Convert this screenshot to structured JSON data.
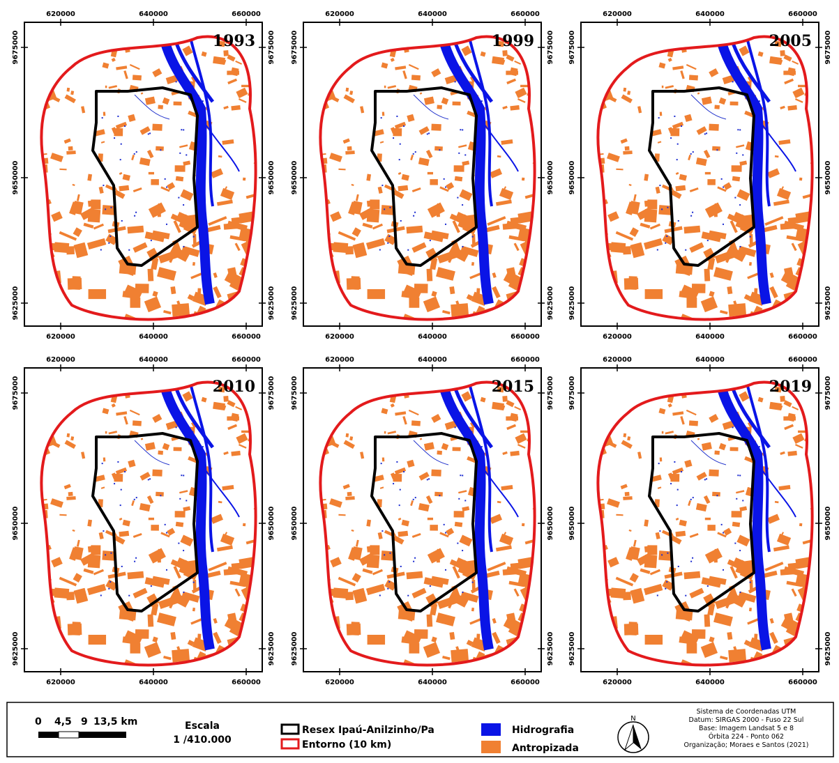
{
  "panels": [
    {
      "year": "1993"
    },
    {
      "year": "1999"
    },
    {
      "year": "2005"
    },
    {
      "year": "2010"
    },
    {
      "year": "2015"
    },
    {
      "year": "2019"
    }
  ],
  "axis": {
    "x_ticks": [
      "620000",
      "640000",
      "660000"
    ],
    "y_ticks": [
      "9675000",
      "9650000",
      "9625000"
    ]
  },
  "legend": {
    "scale_bar": [
      "0",
      "4,5",
      "9",
      "13,5 km"
    ],
    "scale_title": "Escala",
    "scale_ratio": "1 /410.000",
    "reserve": "Resex Ipaú-Anilzinho/Pa",
    "buffer": "Entorno (10 km)",
    "water": "Hidrografia",
    "anthropized": "Antropizada",
    "north": "N",
    "credits": [
      "Sistema de Coordenadas UTM",
      "Datum: SIRGAS 2000 - Fuso 22 Sul",
      "Base: Imagem Landsat 5 e 8",
      "Órbita 224 - Ponto 062",
      "Organização; Moraes e Santos (2021)"
    ]
  }
}
